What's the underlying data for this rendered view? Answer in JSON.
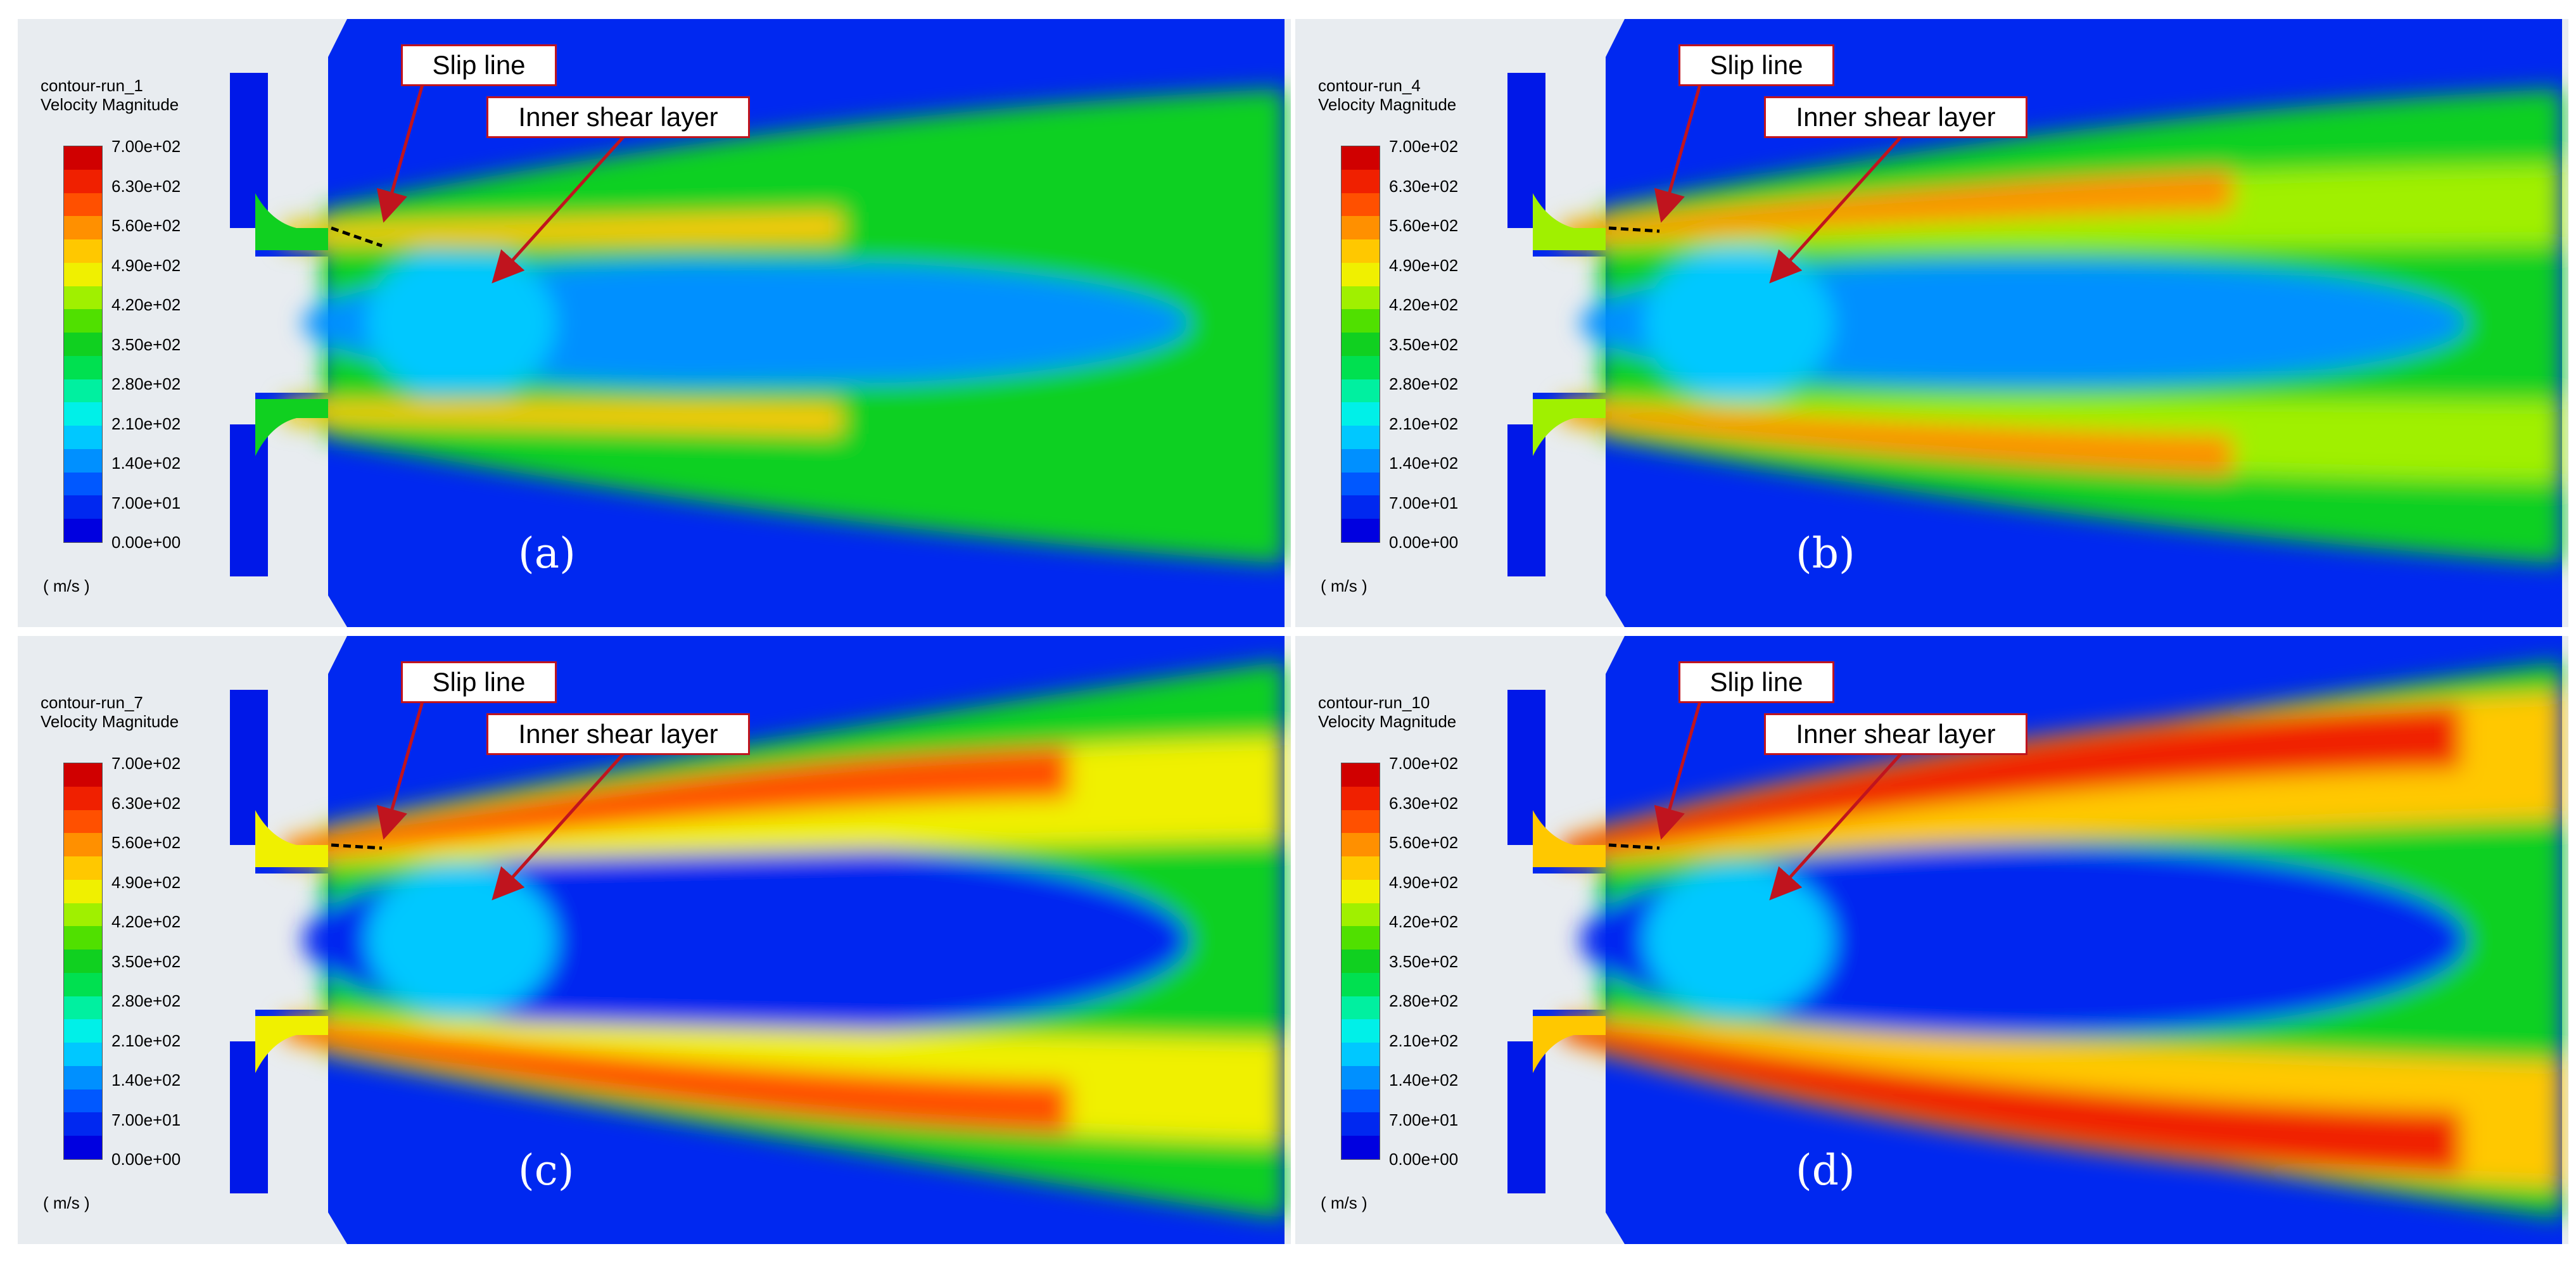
{
  "colormap": [
    "#0000e0",
    "#0028f0",
    "#0058ff",
    "#0090ff",
    "#00c8ff",
    "#00f0e8",
    "#00f0a0",
    "#00e050",
    "#10d020",
    "#50e000",
    "#a0f000",
    "#f0f000",
    "#ffc800",
    "#ff9000",
    "#ff5000",
    "#f02000",
    "#d00000"
  ],
  "legend": {
    "title_line2": "Velocity Magnitude",
    "ticks": [
      "7.00e+02",
      "6.30e+02",
      "5.60e+02",
      "4.90e+02",
      "4.20e+02",
      "3.50e+02",
      "2.80e+02",
      "2.10e+02",
      "1.40e+02",
      "7.00e+01",
      "0.00e+00"
    ],
    "unit": "( m/s )"
  },
  "callouts": {
    "slip_line": "Slip line",
    "inner_shear_layer": "Inner shear layer"
  },
  "panels": [
    {
      "id": "a",
      "contour_name": "contour-run_1",
      "label": "(a)",
      "jet_level": 0.72
    },
    {
      "id": "b",
      "contour_name": "contour-run_4",
      "label": "(b)",
      "jet_level": 0.8
    },
    {
      "id": "c",
      "contour_name": "contour-run_7",
      "label": "(c)",
      "jet_level": 0.88
    },
    {
      "id": "d",
      "contour_name": "contour-run_10",
      "label": "(d)",
      "jet_level": 0.95
    }
  ]
}
